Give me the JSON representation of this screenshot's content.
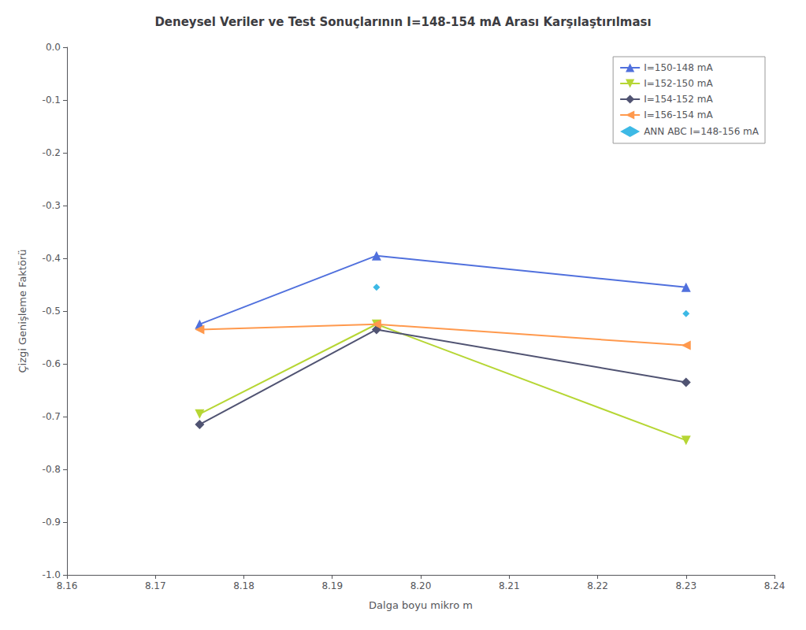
{
  "chart_data": {
    "type": "line",
    "title": "Deneysel Veriler ve Test Sonuçlarının I=148-154 mA Arası Karşılaştırılması",
    "x_label": "Dalga boyu mikro m",
    "y_label": "Çizgi Genişleme Faktörü",
    "xlim": [
      8.16,
      8.24
    ],
    "ylim": [
      -1.0,
      0.0
    ],
    "xticks": [
      8.16,
      8.17,
      8.18,
      8.19,
      {
        "value": 8.2,
        "label": "8.20"
      },
      8.21,
      8.22,
      8.23,
      8.24
    ],
    "yticks": [
      {
        "value": 0,
        "label": "0.0"
      },
      -0.1,
      -0.2,
      -0.3,
      -0.4,
      -0.5,
      -0.6,
      -0.7,
      -0.8,
      -0.9,
      {
        "value": -1.0,
        "label": "-1.0"
      }
    ],
    "grid": false,
    "legend": "upper right",
    "series": [
      {
        "name": "I=150-148 mA",
        "type": "line",
        "marker": "triangle-up",
        "x": [
          8.175,
          8.195,
          8.23
        ],
        "values": [
          -0.525,
          -0.395,
          -0.455
        ]
      },
      {
        "name": "I=152-150 mA",
        "type": "line",
        "marker": "triangle-down",
        "x": [
          8.175,
          8.195,
          8.23
        ],
        "values": [
          -0.695,
          -0.525,
          -0.745
        ]
      },
      {
        "name": "I=154-152 mA",
        "type": "line",
        "marker": "diamond",
        "x": [
          8.175,
          8.195,
          8.23
        ],
        "values": [
          -0.715,
          -0.535,
          -0.635
        ]
      },
      {
        "name": "I=156-154 mA",
        "type": "line",
        "marker": "triangle-left",
        "x": [
          8.175,
          8.195,
          8.23
        ],
        "values": [
          -0.535,
          -0.525,
          -0.565
        ]
      },
      {
        "name": "ANN ABC I=148-156 mA",
        "type": "scatter",
        "marker": "diamond",
        "x": [
          8.195,
          8.23
        ],
        "values": [
          -0.455,
          -0.505
        ]
      }
    ]
  }
}
